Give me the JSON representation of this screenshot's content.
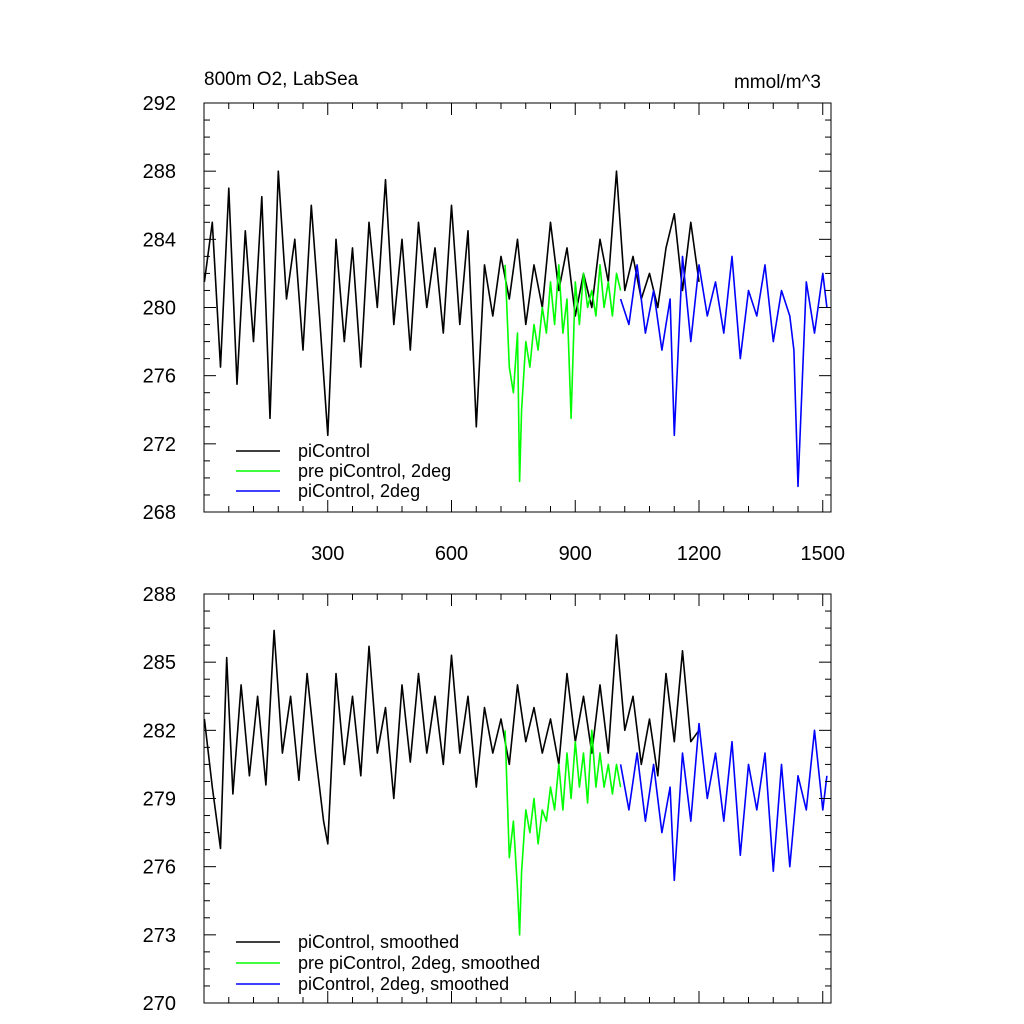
{
  "chart_data": [
    {
      "type": "line",
      "title": "800m O2, LabSea",
      "units": "mmol/m^3",
      "xlim": [
        0,
        1520
      ],
      "ylim": [
        268,
        292
      ],
      "x_ticks": [
        300,
        600,
        900,
        1200,
        1500
      ],
      "x_tick_labels": [
        "300",
        "600",
        "900",
        "1200",
        "1500"
      ],
      "y_ticks": [
        268,
        272,
        276,
        280,
        284,
        288,
        292
      ],
      "y_tick_labels": [
        "268",
        "272",
        "276",
        "280",
        "284",
        "288",
        "292"
      ],
      "legend": {
        "position": "bottom-left"
      },
      "series": [
        {
          "name": "piControl",
          "color": "#000000",
          "x": [
            1,
            20,
            40,
            60,
            80,
            100,
            120,
            140,
            160,
            180,
            200,
            220,
            240,
            260,
            280,
            300,
            320,
            340,
            360,
            380,
            400,
            420,
            440,
            460,
            480,
            500,
            520,
            540,
            560,
            580,
            600,
            620,
            640,
            660,
            680,
            700,
            720,
            740,
            760,
            780,
            800,
            820,
            840,
            860,
            880,
            900,
            920,
            940,
            960,
            980,
            1000,
            1020,
            1040,
            1060,
            1080,
            1100,
            1120,
            1140,
            1160,
            1180,
            1200
          ],
          "values": [
            281.5,
            285.0,
            276.5,
            287.0,
            275.5,
            284.5,
            278.0,
            286.5,
            273.5,
            288.0,
            280.5,
            284.0,
            277.5,
            286.0,
            279.5,
            272.5,
            284.0,
            278.0,
            283.5,
            276.5,
            285.0,
            280.0,
            287.5,
            279.0,
            284.0,
            277.5,
            285.0,
            280.0,
            283.5,
            278.5,
            286.0,
            279.0,
            284.5,
            273.0,
            282.5,
            279.5,
            283.0,
            280.5,
            284.0,
            279.0,
            282.5,
            280.0,
            285.0,
            281.0,
            283.5,
            279.5,
            282.0,
            280.0,
            284.0,
            281.5,
            288.0,
            281.0,
            283.0,
            280.5,
            282.0,
            280.0,
            283.5,
            285.5,
            281.0,
            285.0,
            281.5
          ]
        },
        {
          "name": "pre piControl, 2deg",
          "color": "#00ff00",
          "x": [
            730,
            740,
            750,
            760,
            765,
            770,
            780,
            790,
            800,
            810,
            820,
            830,
            840,
            850,
            860,
            870,
            880,
            890,
            900,
            910,
            920,
            930,
            940,
            950,
            960,
            970,
            980,
            990,
            1000,
            1010
          ],
          "values": [
            282.5,
            276.5,
            275.0,
            278.5,
            269.8,
            274.0,
            278.0,
            276.5,
            279.0,
            277.5,
            280.0,
            278.5,
            281.5,
            279.0,
            282.5,
            278.5,
            280.5,
            273.5,
            281.5,
            279.0,
            282.0,
            280.0,
            281.0,
            279.5,
            282.5,
            280.0,
            281.5,
            279.5,
            282.0,
            281.0
          ]
        },
        {
          "name": "piControl, 2deg",
          "color": "#0000ff",
          "x": [
            1010,
            1030,
            1050,
            1070,
            1090,
            1110,
            1130,
            1140,
            1160,
            1180,
            1200,
            1220,
            1240,
            1260,
            1280,
            1300,
            1320,
            1340,
            1360,
            1380,
            1400,
            1420,
            1430,
            1440,
            1460,
            1480,
            1500,
            1510
          ],
          "values": [
            280.5,
            279.0,
            282.5,
            278.5,
            281.0,
            277.5,
            280.5,
            272.5,
            283.0,
            278.0,
            282.5,
            279.5,
            281.5,
            278.5,
            283.0,
            277.0,
            281.0,
            279.5,
            282.5,
            278.0,
            281.0,
            279.5,
            277.5,
            269.5,
            281.5,
            278.5,
            282.0,
            280.0
          ]
        }
      ]
    },
    {
      "type": "line",
      "xlim": [
        0,
        1520
      ],
      "ylim": [
        270,
        288
      ],
      "x_ticks": [
        300,
        600,
        900,
        1200,
        1500
      ],
      "y_ticks": [
        270,
        273,
        276,
        279,
        282,
        285,
        288
      ],
      "y_tick_labels": [
        "270",
        "273",
        "276",
        "279",
        "282",
        "285",
        "288"
      ],
      "legend": {
        "position": "bottom-left"
      },
      "series": [
        {
          "name": "piControl, smoothed",
          "color": "#000000",
          "x": [
            1,
            20,
            40,
            55,
            70,
            90,
            110,
            130,
            150,
            170,
            190,
            210,
            230,
            250,
            270,
            290,
            300,
            320,
            340,
            360,
            380,
            400,
            420,
            440,
            460,
            480,
            500,
            520,
            540,
            560,
            580,
            600,
            620,
            640,
            660,
            680,
            700,
            720,
            740,
            760,
            780,
            800,
            820,
            840,
            860,
            880,
            900,
            920,
            940,
            960,
            980,
            1000,
            1020,
            1040,
            1060,
            1080,
            1100,
            1120,
            1140,
            1160,
            1180,
            1200
          ],
          "values": [
            282.5,
            279.5,
            276.8,
            285.2,
            279.2,
            284.0,
            280.0,
            283.5,
            279.6,
            286.4,
            281.0,
            283.5,
            279.8,
            284.5,
            281.0,
            278.0,
            277.0,
            284.5,
            280.5,
            283.5,
            280.0,
            285.7,
            281.0,
            283.0,
            279.0,
            284.0,
            280.6,
            284.5,
            281.0,
            283.5,
            280.5,
            285.3,
            281.0,
            283.5,
            279.5,
            283.0,
            281.0,
            282.5,
            280.5,
            284.0,
            281.5,
            283.0,
            281.0,
            282.5,
            280.5,
            284.5,
            281.5,
            283.5,
            281.0,
            284.0,
            281.0,
            286.2,
            282.0,
            283.5,
            280.5,
            282.5,
            280.0,
            284.5,
            281.5,
            285.5,
            281.5,
            282.0
          ]
        },
        {
          "name": "pre piControl, 2deg, smoothed",
          "color": "#00ff00",
          "x": [
            730,
            740,
            750,
            760,
            765,
            770,
            780,
            790,
            800,
            810,
            820,
            830,
            840,
            850,
            860,
            870,
            880,
            890,
            900,
            910,
            920,
            930,
            940,
            950,
            960,
            970,
            980,
            990,
            1000,
            1010
          ],
          "values": [
            282.0,
            276.4,
            278.0,
            275.0,
            273.0,
            275.8,
            278.5,
            277.5,
            279.0,
            277.0,
            278.5,
            278.0,
            279.5,
            278.5,
            280.5,
            278.5,
            281.0,
            279.0,
            281.5,
            279.5,
            281.0,
            278.8,
            282.0,
            279.5,
            281.0,
            279.5,
            280.5,
            279.2,
            280.5,
            279.5
          ]
        },
        {
          "name": "piControl, 2deg, smoothed",
          "color": "#0000ff",
          "x": [
            1010,
            1030,
            1050,
            1070,
            1090,
            1110,
            1130,
            1140,
            1160,
            1180,
            1200,
            1220,
            1240,
            1260,
            1280,
            1300,
            1320,
            1340,
            1360,
            1380,
            1400,
            1420,
            1440,
            1460,
            1480,
            1500,
            1510
          ],
          "values": [
            280.5,
            278.5,
            281.0,
            278.0,
            280.5,
            277.5,
            279.5,
            275.4,
            281.0,
            278.0,
            282.3,
            279.0,
            281.0,
            278.0,
            281.5,
            276.5,
            280.5,
            278.5,
            281.0,
            275.8,
            280.5,
            276.0,
            280.0,
            278.5,
            282.0,
            278.5,
            280.0
          ]
        }
      ]
    }
  ]
}
